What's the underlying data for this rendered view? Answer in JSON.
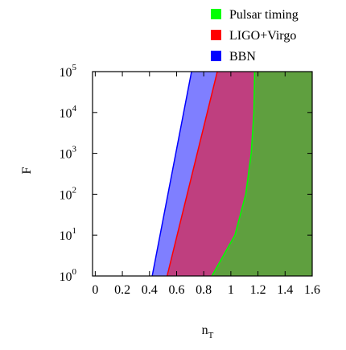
{
  "chart_data": {
    "type": "area",
    "x_label": "n",
    "x_label_sub": "T",
    "y_label": "F",
    "log_y": true,
    "xlim": [
      -0.02,
      1.6
    ],
    "xticks": [
      0,
      0.2,
      0.4,
      0.6,
      0.8,
      1,
      1.2,
      1.4,
      1.6
    ],
    "ylim": [
      1,
      100000
    ],
    "yticks": [
      {
        "value": 1,
        "label": "10",
        "exponent": "0"
      },
      {
        "value": 10,
        "label": "10",
        "exponent": "1"
      },
      {
        "value": 100,
        "label": "10",
        "exponent": "2"
      },
      {
        "value": 1000,
        "label": "10",
        "exponent": "3"
      },
      {
        "value": 10000,
        "label": "10",
        "exponent": "4"
      },
      {
        "value": 100000,
        "label": "10",
        "exponent": "5"
      }
    ],
    "legend": "top-right",
    "series": [
      {
        "name": "BBN",
        "color": "#0000ff",
        "x": [
          0.42,
          0.71
        ],
        "values": [
          1,
          100000
        ]
      },
      {
        "name": "LIGO+Virgo",
        "color": "#ff0000",
        "x": [
          0.53,
          0.9
        ],
        "values": [
          1,
          100000
        ]
      },
      {
        "name": "Pulsar timing",
        "color": "#00ff00",
        "x": [
          0.86,
          1.03,
          1.11,
          1.15,
          1.17,
          1.175
        ],
        "values": [
          1,
          10,
          100,
          1000,
          10000,
          100000
        ]
      }
    ]
  }
}
